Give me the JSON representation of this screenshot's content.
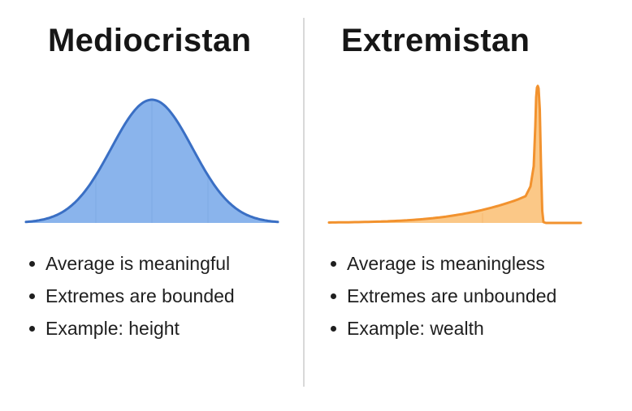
{
  "mediocristan": {
    "title": "Mediocristan",
    "points": [
      "Average is meaningful",
      "Extremes are bounded",
      "Example: height"
    ],
    "colors": {
      "stroke": "#3a6fc4",
      "fill": "#8ab4ec"
    }
  },
  "extremistan": {
    "title": "Extremistan",
    "points": [
      "Average is meaningless",
      "Extremes are unbounded",
      "Example: wealth"
    ],
    "colors": {
      "stroke": "#f2922e",
      "fill": "#fbc887"
    }
  }
}
